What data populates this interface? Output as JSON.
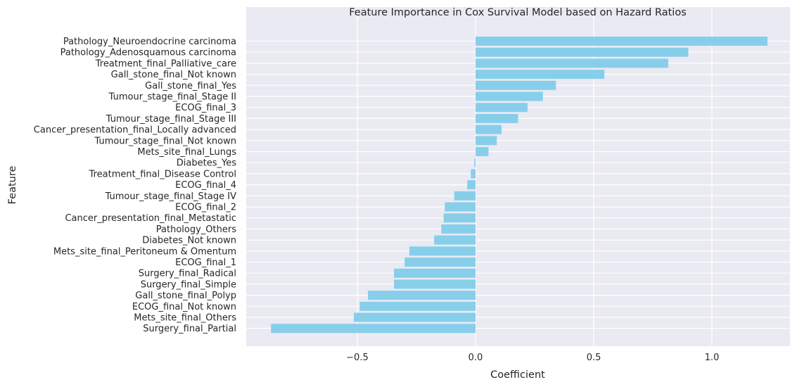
{
  "chart_data": {
    "type": "bar",
    "orientation": "horizontal",
    "title": "Feature Importance in Cox Survival Model based on Hazard Ratios",
    "xlabel": "Coefficient",
    "ylabel": "Feature",
    "grid": true,
    "bar_color": "#87ceeb",
    "background_color": "#eaeaf2",
    "xlim": [
      -0.97,
      1.33
    ],
    "xticks": [
      -0.5,
      0.0,
      0.5,
      1.0
    ],
    "xtick_labels": [
      "−0.5",
      "0.0",
      "0.5",
      "1.0"
    ],
    "categories": [
      "Pathology_Neuroendocrine carcinoma",
      "Pathology_Adenosquamous carcinoma",
      "Treatment_final_Palliative_care",
      "Gall_stone_final_Not known",
      "Gall_stone_final_Yes",
      "Tumour_stage_final_Stage II",
      "ECOG_final_3",
      "Tumour_stage_final_Stage III",
      "Cancer_presentation_final_Locally advanced",
      "Tumour_stage_final_Not known",
      "Mets_site_final_Lungs",
      "Diabetes_Yes",
      "Treatment_final_Disease Control",
      "ECOG_final_4",
      "Tumour_stage_final_Stage IV",
      "ECOG_final_2",
      "Cancer_presentation_final_Metastatic",
      "Pathology_Others",
      "Diabetes_Not known",
      "Mets_site_final_Peritoneum & Omentum",
      "ECOG_final_1",
      "Surgery_final_Radical",
      "Surgery_final_Simple",
      "Gall_stone_final_Polyp",
      "ECOG_final_Not known",
      "Mets_site_final_Others",
      "Surgery_final_Partial"
    ],
    "values": [
      1.235,
      0.9,
      0.815,
      0.545,
      0.34,
      0.285,
      0.22,
      0.18,
      0.11,
      0.09,
      0.055,
      -0.005,
      -0.02,
      -0.035,
      -0.09,
      -0.13,
      -0.135,
      -0.145,
      -0.175,
      -0.28,
      -0.3,
      -0.345,
      -0.345,
      -0.455,
      -0.49,
      -0.515,
      -0.865
    ]
  }
}
